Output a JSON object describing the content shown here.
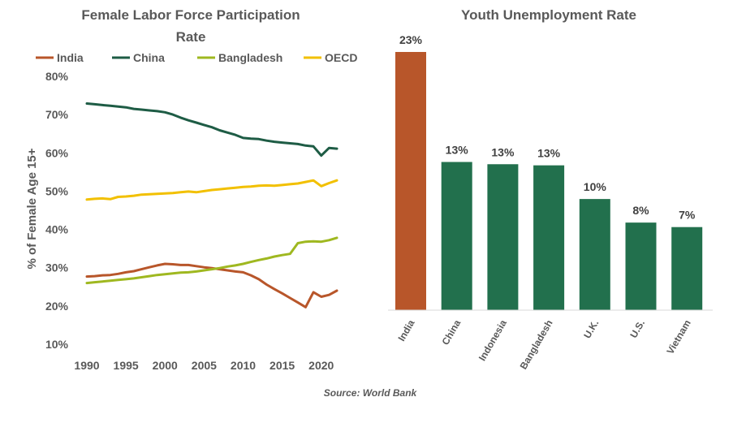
{
  "source": "Source: World Bank",
  "chart_data": [
    {
      "type": "line",
      "title_lines": [
        "Female Labor Force Participation",
        "Rate"
      ],
      "xlabel": "",
      "ylabel": "% of Female Age 15+",
      "xlim": [
        1990,
        2022
      ],
      "ylim": [
        10,
        80
      ],
      "x_ticks": [
        "1990",
        "1995",
        "2000",
        "2005",
        "2010",
        "2015",
        "2020"
      ],
      "y_ticks": [
        "10%",
        "20%",
        "30%",
        "40%",
        "50%",
        "60%",
        "70%",
        "80%"
      ],
      "legend_position": "top",
      "grid": false,
      "x": [
        1990,
        1991,
        1992,
        1993,
        1994,
        1995,
        1996,
        1997,
        1998,
        1999,
        2000,
        2001,
        2002,
        2003,
        2004,
        2005,
        2006,
        2007,
        2008,
        2009,
        2010,
        2011,
        2012,
        2013,
        2014,
        2015,
        2016,
        2017,
        2018,
        2019,
        2020,
        2021,
        2022
      ],
      "series": [
        {
          "name": "India",
          "color": "#b8562a",
          "values": [
            27.7,
            27.8,
            28.0,
            28.1,
            28.4,
            28.8,
            29.1,
            29.6,
            30.1,
            30.6,
            31.0,
            30.9,
            30.7,
            30.7,
            30.4,
            30.1,
            29.9,
            29.6,
            29.3,
            29.0,
            28.8,
            28.0,
            27.0,
            25.6,
            24.4,
            23.3,
            22.1,
            20.9,
            19.7,
            23.6,
            22.4,
            22.9,
            24.0
          ]
        },
        {
          "name": "China",
          "color": "#1e5c45",
          "values": [
            72.9,
            72.7,
            72.5,
            72.3,
            72.1,
            71.9,
            71.5,
            71.3,
            71.1,
            70.9,
            70.6,
            70.0,
            69.2,
            68.5,
            67.9,
            67.3,
            66.7,
            65.9,
            65.3,
            64.7,
            63.9,
            63.7,
            63.6,
            63.2,
            62.9,
            62.7,
            62.5,
            62.3,
            61.9,
            61.7,
            59.3,
            61.3,
            61.1
          ]
        },
        {
          "name": "Bangladesh",
          "color": "#9fb820",
          "values": [
            26.0,
            26.2,
            26.4,
            26.6,
            26.8,
            27.0,
            27.2,
            27.5,
            27.8,
            28.1,
            28.3,
            28.5,
            28.7,
            28.8,
            29.0,
            29.3,
            29.6,
            29.9,
            30.3,
            30.6,
            31.0,
            31.5,
            32.0,
            32.4,
            32.9,
            33.3,
            33.6,
            36.4,
            36.8,
            36.9,
            36.8,
            37.2,
            37.8
          ]
        },
        {
          "name": "OECD",
          "color": "#f2c000",
          "values": [
            47.8,
            48.0,
            48.1,
            47.9,
            48.5,
            48.6,
            48.8,
            49.1,
            49.2,
            49.3,
            49.4,
            49.5,
            49.7,
            49.9,
            49.7,
            50.0,
            50.3,
            50.5,
            50.7,
            50.9,
            51.1,
            51.2,
            51.4,
            51.5,
            51.4,
            51.6,
            51.8,
            52.0,
            52.4,
            52.8,
            51.3,
            52.1,
            52.8
          ]
        }
      ]
    },
    {
      "type": "bar",
      "title": "Youth Unemployment Rate",
      "xlabel": "",
      "ylabel": "",
      "ylim": [
        0,
        23
      ],
      "categories": [
        "India",
        "China",
        "Indonesia",
        "Bangladesh",
        "U.K.",
        "U.S.",
        "Vietnam"
      ],
      "values": [
        23,
        13.2,
        13.0,
        12.9,
        9.9,
        7.8,
        7.4
      ],
      "value_labels": [
        "23%",
        "13%",
        "13%",
        "13%",
        "10%",
        "8%",
        "7%"
      ],
      "colors": [
        "#b8562a",
        "#22704d",
        "#22704d",
        "#22704d",
        "#22704d",
        "#22704d",
        "#22704d"
      ]
    }
  ]
}
